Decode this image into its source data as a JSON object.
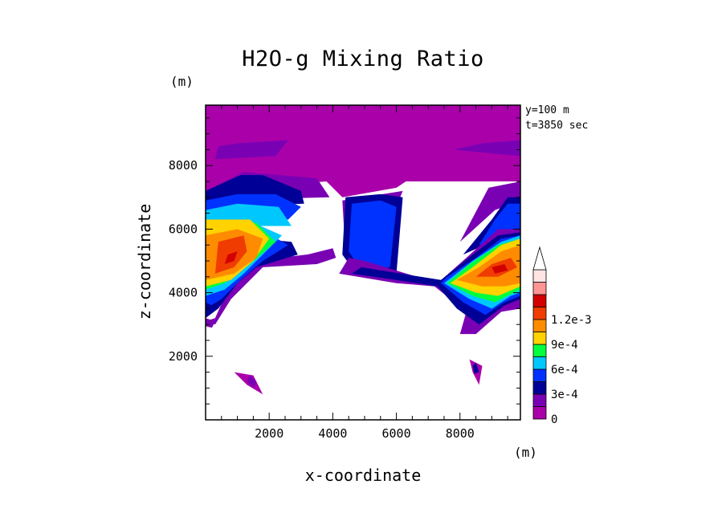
{
  "chart_data": {
    "type": "heatmap",
    "title": "H2O-g Mixing Ratio",
    "xlabel": "x-coordinate",
    "ylabel": "z-coordinate",
    "x_unit": "(m)",
    "y_unit": "(m)",
    "annotations": [
      "y=100 m",
      "t=3850 sec"
    ],
    "xlim": [
      0,
      9900
    ],
    "ylim": [
      0,
      9900
    ],
    "x_ticks": [
      2000,
      4000,
      6000,
      8000
    ],
    "y_ticks": [
      2000,
      4000,
      6000,
      8000
    ],
    "x_tick_labels": [
      "2000",
      "4000",
      "6000",
      "8000"
    ],
    "y_tick_labels": [
      "2000",
      "4000",
      "6000",
      "8000"
    ],
    "colorbar": {
      "levels": [
        0,
        0.00015,
        0.0003,
        0.00045,
        0.0006,
        0.00075,
        0.0009,
        0.00105,
        0.0012,
        0.00135
      ],
      "colors": [
        "#aa00aa",
        "#7a00b4",
        "#000096",
        "#0032ff",
        "#00c8ff",
        "#00ff3c",
        "#ffd200",
        "#ff8c00",
        "#f03c00",
        "#d20000",
        "#ff9696",
        "#ffe4e4"
      ],
      "tick_labels": [
        "0",
        "3e-4",
        "6e-4",
        "9e-4",
        "1.2e-3"
      ],
      "tick_values": [
        0,
        0.0003,
        0.0006,
        0.0009,
        0.0012
      ],
      "extend": "max"
    },
    "regions": [
      {
        "level": 0,
        "polygon": [
          [
            0,
            7200
          ],
          [
            3800,
            7500
          ],
          [
            4300,
            7000
          ],
          [
            6000,
            7300
          ],
          [
            6300,
            7500
          ],
          [
            9900,
            7500
          ],
          [
            9900,
            9900
          ],
          [
            0,
            9900
          ]
        ]
      },
      {
        "level": 1,
        "polygon": [
          [
            0,
            7200
          ],
          [
            1200,
            7800
          ],
          [
            3500,
            7600
          ],
          [
            3900,
            7000
          ],
          [
            0,
            6900
          ]
        ]
      },
      {
        "level": 1,
        "polygon": [
          [
            4300,
            6900
          ],
          [
            6200,
            7200
          ],
          [
            5300,
            5000
          ],
          [
            4400,
            5200
          ]
        ]
      },
      {
        "level": 1,
        "polygon": [
          [
            9900,
            7500
          ],
          [
            8900,
            7300
          ],
          [
            8000,
            5600
          ],
          [
            9100,
            6600
          ],
          [
            9900,
            6900
          ]
        ]
      },
      {
        "level": 1,
        "polygon": [
          [
            9900,
            8800
          ],
          [
            8700,
            8700
          ],
          [
            7800,
            8500
          ],
          [
            8800,
            8400
          ],
          [
            9900,
            8300
          ]
        ]
      },
      {
        "level": 1,
        "polygon": [
          [
            1000,
            8700
          ],
          [
            400,
            8600
          ],
          [
            300,
            8200
          ],
          [
            2200,
            8300
          ],
          [
            2600,
            8800
          ]
        ]
      },
      {
        "level": 0,
        "polygon": [
          [
            900,
            1500
          ],
          [
            1500,
            1400
          ],
          [
            1800,
            800
          ],
          [
            1300,
            1100
          ]
        ]
      },
      {
        "level": 1,
        "polygon": [
          [
            1400,
            1400
          ],
          [
            1600,
            1200
          ],
          [
            1500,
            1000
          ],
          [
            1300,
            1200
          ]
        ]
      },
      {
        "level": 0,
        "polygon": [
          [
            8300,
            1900
          ],
          [
            8700,
            1700
          ],
          [
            8600,
            1100
          ],
          [
            8400,
            1500
          ]
        ]
      },
      {
        "level": 2,
        "polygon": [
          [
            8400,
            1700
          ],
          [
            8500,
            1800
          ],
          [
            8600,
            1500
          ],
          [
            8450,
            1450
          ]
        ]
      },
      {
        "level": 2,
        "polygon": [
          [
            0,
            7200
          ],
          [
            1100,
            7700
          ],
          [
            1800,
            7700
          ],
          [
            3000,
            7200
          ],
          [
            3100,
            6800
          ],
          [
            0,
            6700
          ]
        ]
      },
      {
        "level": 3,
        "polygon": [
          [
            0,
            6900
          ],
          [
            1000,
            7100
          ],
          [
            2200,
            7100
          ],
          [
            3000,
            6700
          ],
          [
            2600,
            6300
          ],
          [
            0,
            6400
          ]
        ]
      },
      {
        "level": 4,
        "polygon": [
          [
            0,
            6600
          ],
          [
            1000,
            6800
          ],
          [
            2300,
            6700
          ],
          [
            2700,
            6100
          ],
          [
            0,
            6100
          ]
        ]
      },
      {
        "level": 2,
        "polygon": [
          [
            4400,
            7000
          ],
          [
            5500,
            7100
          ],
          [
            6200,
            7000
          ],
          [
            6000,
            4600
          ],
          [
            4800,
            4500
          ],
          [
            4300,
            5200
          ]
        ]
      },
      {
        "level": 3,
        "polygon": [
          [
            4600,
            6800
          ],
          [
            5500,
            6900
          ],
          [
            6000,
            6700
          ],
          [
            5800,
            4800
          ],
          [
            4900,
            4700
          ],
          [
            4500,
            5300
          ]
        ]
      },
      {
        "level": 2,
        "polygon": [
          [
            9900,
            7000
          ],
          [
            9500,
            7000
          ],
          [
            9000,
            6300
          ],
          [
            8100,
            5200
          ],
          [
            9000,
            5600
          ],
          [
            9900,
            6000
          ]
        ]
      },
      {
        "level": 3,
        "polygon": [
          [
            9900,
            6800
          ],
          [
            9500,
            6800
          ],
          [
            9100,
            6300
          ],
          [
            8600,
            5500
          ],
          [
            9900,
            5800
          ]
        ]
      },
      {
        "level": 1,
        "polygon": [
          [
            0,
            3100
          ],
          [
            300,
            3200
          ],
          [
            700,
            4100
          ],
          [
            1500,
            5000
          ],
          [
            3200,
            5200
          ],
          [
            4000,
            5400
          ],
          [
            4100,
            5100
          ],
          [
            3500,
            4900
          ],
          [
            1800,
            4800
          ],
          [
            800,
            3800
          ],
          [
            300,
            3000
          ]
        ]
      },
      {
        "level": 2,
        "polygon": [
          [
            0,
            3200
          ],
          [
            400,
            3500
          ],
          [
            1000,
            4300
          ],
          [
            1600,
            4800
          ],
          [
            2900,
            5200
          ],
          [
            2700,
            5600
          ],
          [
            1600,
            5700
          ],
          [
            0,
            5500
          ]
        ]
      },
      {
        "level": 3,
        "polygon": [
          [
            0,
            3500
          ],
          [
            500,
            3800
          ],
          [
            1100,
            4400
          ],
          [
            1800,
            5000
          ],
          [
            2600,
            5500
          ],
          [
            1900,
            5900
          ],
          [
            0,
            5900
          ]
        ]
      },
      {
        "level": 4,
        "polygon": [
          [
            0,
            3900
          ],
          [
            600,
            4100
          ],
          [
            1200,
            4600
          ],
          [
            2000,
            5400
          ],
          [
            2400,
            5800
          ],
          [
            1500,
            6200
          ],
          [
            0,
            6200
          ]
        ]
      },
      {
        "level": 5,
        "polygon": [
          [
            0,
            4100
          ],
          [
            600,
            4300
          ],
          [
            1400,
            4900
          ],
          [
            2200,
            5600
          ],
          [
            1600,
            6200
          ],
          [
            0,
            6300
          ]
        ]
      },
      {
        "level": 6,
        "polygon": [
          [
            0,
            4200
          ],
          [
            800,
            4400
          ],
          [
            1500,
            5000
          ],
          [
            2000,
            5700
          ],
          [
            1400,
            6300
          ],
          [
            0,
            6300
          ]
        ]
      },
      {
        "level": 7,
        "polygon": [
          [
            0,
            4400
          ],
          [
            900,
            4600
          ],
          [
            1600,
            5100
          ],
          [
            1800,
            5700
          ],
          [
            1000,
            6000
          ],
          [
            0,
            5800
          ]
        ]
      },
      {
        "level": 8,
        "polygon": [
          [
            300,
            4600
          ],
          [
            900,
            4800
          ],
          [
            1300,
            5300
          ],
          [
            1200,
            5800
          ],
          [
            400,
            5600
          ]
        ]
      },
      {
        "level": 9,
        "polygon": [
          [
            600,
            4900
          ],
          [
            900,
            5000
          ],
          [
            1000,
            5300
          ],
          [
            700,
            5200
          ]
        ]
      },
      {
        "level": 2,
        "polygon": [
          [
            0,
            3700
          ],
          [
            200,
            3600
          ],
          [
            100,
            3300
          ],
          [
            0,
            3400
          ]
        ]
      },
      {
        "level": 1,
        "polygon": [
          [
            0,
            3200
          ],
          [
            300,
            3100
          ],
          [
            200,
            2900
          ],
          [
            0,
            2950
          ]
        ]
      },
      {
        "level": 1,
        "polygon": [
          [
            4200,
            4600
          ],
          [
            6000,
            4300
          ],
          [
            7200,
            4200
          ],
          [
            8200,
            3400
          ],
          [
            8000,
            2700
          ],
          [
            8500,
            2700
          ],
          [
            9300,
            3400
          ],
          [
            9900,
            3500
          ],
          [
            9900,
            6000
          ],
          [
            9200,
            6000
          ],
          [
            8200,
            5100
          ],
          [
            7300,
            4300
          ],
          [
            5000,
            5000
          ],
          [
            4500,
            5100
          ]
        ]
      },
      {
        "level": 2,
        "polygon": [
          [
            4600,
            4600
          ],
          [
            6000,
            4400
          ],
          [
            7300,
            4200
          ],
          [
            7900,
            3500
          ],
          [
            8600,
            3000
          ],
          [
            9400,
            3600
          ],
          [
            9900,
            3800
          ],
          [
            9900,
            5900
          ],
          [
            9200,
            5800
          ],
          [
            8400,
            5200
          ],
          [
            7400,
            4400
          ],
          [
            4900,
            4800
          ]
        ]
      },
      {
        "level": 3,
        "polygon": [
          [
            7400,
            4300
          ],
          [
            8100,
            3700
          ],
          [
            8800,
            3300
          ],
          [
            9400,
            3700
          ],
          [
            9900,
            3900
          ],
          [
            9900,
            5800
          ],
          [
            9300,
            5700
          ],
          [
            8500,
            5100
          ],
          [
            7600,
            4500
          ]
        ]
      },
      {
        "level": 4,
        "polygon": [
          [
            7500,
            4300
          ],
          [
            8300,
            3800
          ],
          [
            9000,
            3500
          ],
          [
            9600,
            3900
          ],
          [
            9900,
            4000
          ],
          [
            9900,
            5800
          ],
          [
            9300,
            5600
          ],
          [
            8400,
            5000
          ]
        ]
      },
      {
        "level": 5,
        "polygon": [
          [
            7600,
            4300
          ],
          [
            8400,
            3900
          ],
          [
            9100,
            3700
          ],
          [
            9900,
            4100
          ],
          [
            9900,
            5700
          ],
          [
            9200,
            5500
          ],
          [
            8300,
            4900
          ]
        ]
      },
      {
        "level": 6,
        "polygon": [
          [
            7700,
            4300
          ],
          [
            8500,
            4000
          ],
          [
            9200,
            3900
          ],
          [
            9900,
            4200
          ],
          [
            9900,
            5700
          ],
          [
            9300,
            5500
          ],
          [
            8400,
            4800
          ]
        ]
      },
      {
        "level": 7,
        "polygon": [
          [
            7900,
            4400
          ],
          [
            8700,
            4200
          ],
          [
            9400,
            4200
          ],
          [
            9900,
            4300
          ],
          [
            9900,
            5500
          ],
          [
            9300,
            5300
          ],
          [
            8600,
            4800
          ]
        ]
      },
      {
        "level": 8,
        "polygon": [
          [
            8500,
            4500
          ],
          [
            9200,
            4500
          ],
          [
            9800,
            4800
          ],
          [
            9600,
            5100
          ],
          [
            9000,
            4900
          ]
        ]
      },
      {
        "level": 9,
        "polygon": [
          [
            9100,
            4600
          ],
          [
            9500,
            4700
          ],
          [
            9400,
            4900
          ],
          [
            9000,
            4800
          ]
        ]
      }
    ]
  }
}
